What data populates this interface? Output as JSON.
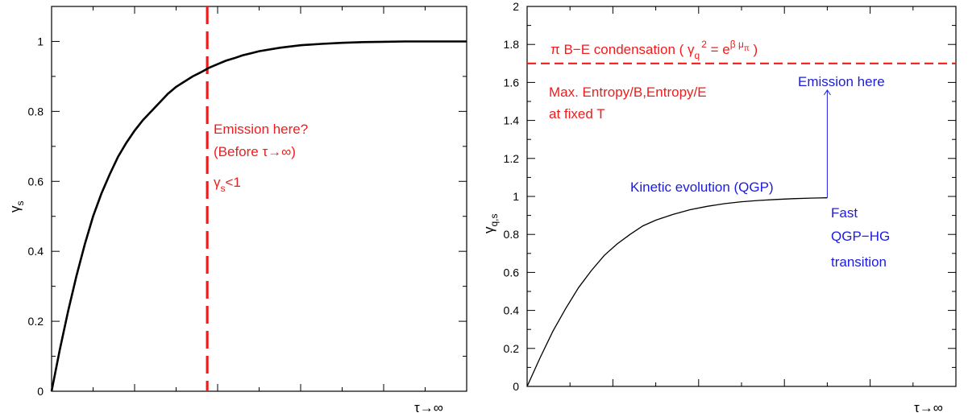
{
  "colors": {
    "red": "#ee1c1c",
    "blue": "#1c1cdd",
    "black": "#000000"
  },
  "chart_data": [
    {
      "type": "line",
      "xlabel": "τ→∞",
      "ylabel": "γ",
      "ylabel_sub": "s",
      "xlim": [
        0,
        1
      ],
      "ylim": [
        0,
        1.1
      ],
      "ytick_labels": [
        "0",
        "0.2",
        "0.4",
        "0.6",
        "0.8",
        "1"
      ],
      "ytick_values": [
        0,
        0.2,
        0.4,
        0.6,
        0.8,
        1
      ],
      "series": [
        {
          "x": [
            0,
            0.02,
            0.04,
            0.06,
            0.08,
            0.1,
            0.12,
            0.14,
            0.16,
            0.18,
            0.2,
            0.22,
            0.24,
            0.26,
            0.28,
            0.3,
            0.32,
            0.34,
            0.36,
            0.38,
            0.4,
            0.42,
            0.44,
            0.46,
            0.48,
            0.5,
            0.55,
            0.6,
            0.65,
            0.7,
            0.75,
            0.8,
            0.85,
            0.9,
            0.95,
            1.0
          ],
          "y": [
            0,
            0.12,
            0.23,
            0.33,
            0.42,
            0.5,
            0.565,
            0.62,
            0.67,
            0.71,
            0.745,
            0.775,
            0.8,
            0.825,
            0.85,
            0.87,
            0.885,
            0.9,
            0.912,
            0.925,
            0.935,
            0.945,
            0.952,
            0.96,
            0.966,
            0.972,
            0.982,
            0.989,
            0.993,
            0.996,
            0.998,
            0.999,
            1.0,
            1.0,
            1.0,
            1.0
          ]
        }
      ],
      "vline": {
        "x": 0.375
      },
      "annotations": {
        "line1": "Emission here?",
        "line2": "(Before τ→∞)",
        "line3_main": "γ",
        "line3_sub": "s",
        "line3_rest": "<1"
      }
    },
    {
      "type": "line",
      "xlabel": "τ→∞",
      "ylabel": "γ",
      "ylabel_sub": "q,s",
      "xlim": [
        0,
        1
      ],
      "ylim": [
        0,
        2
      ],
      "ytick_labels": [
        "0",
        "0.2",
        "0.4",
        "0.6",
        "0.8",
        "1",
        "1.2",
        "1.4",
        "1.6",
        "1.8",
        "2"
      ],
      "ytick_values": [
        0,
        0.2,
        0.4,
        0.6,
        0.8,
        1,
        1.2,
        1.4,
        1.6,
        1.8,
        2
      ],
      "series": [
        {
          "x": [
            0,
            0.03,
            0.06,
            0.09,
            0.12,
            0.15,
            0.18,
            0.21,
            0.24,
            0.27,
            0.3,
            0.34,
            0.38,
            0.42,
            0.46,
            0.5,
            0.54,
            0.58,
            0.62,
            0.66,
            0.7
          ],
          "y": [
            0,
            0.15,
            0.29,
            0.41,
            0.52,
            0.61,
            0.69,
            0.75,
            0.8,
            0.845,
            0.875,
            0.905,
            0.93,
            0.948,
            0.962,
            0.972,
            0.979,
            0.984,
            0.988,
            0.991,
            0.993
          ]
        }
      ],
      "hline": {
        "y": 1.7
      },
      "arrow": {
        "x": 0.7,
        "y_from": 0.993,
        "y_to": 1.56
      },
      "annotations": {
        "be_prefix": "π B−E condensation ( γ",
        "be_sub": "q",
        "be_sup": "2",
        "be_eq": " = e",
        "be_exp": "β μ",
        "be_exp_sub": "π",
        "be_close": " )",
        "max_entropy_1": "Max. Entropy/B,Entropy/E",
        "max_entropy_2": "at fixed T",
        "emission": "Emission here",
        "kinetic": "Kinetic evolution (QGP)",
        "fast_1": "Fast",
        "fast_2": "QGP−HG",
        "fast_3": "transition"
      }
    }
  ]
}
